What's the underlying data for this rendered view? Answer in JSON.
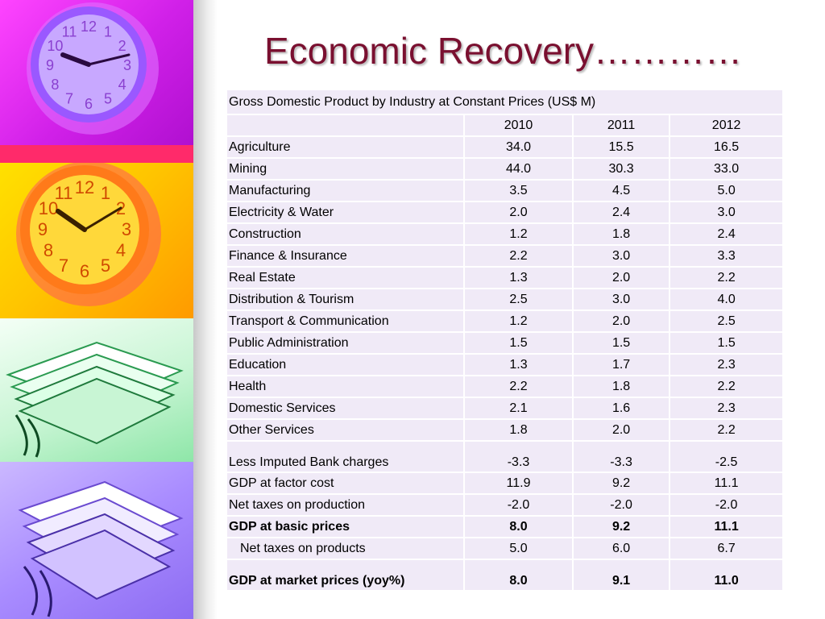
{
  "slide": {
    "title": "Economic Recovery…………"
  },
  "table": {
    "caption": "Gross Domestic Product by Industry  at Constant Prices (US$ M)",
    "years": [
      "2010",
      "2011",
      "2012"
    ],
    "rows": [
      {
        "label": "Agriculture",
        "values": [
          "34.0",
          "15.5",
          "16.5"
        ]
      },
      {
        "label": "Mining",
        "values": [
          "44.0",
          "30.3",
          "33.0"
        ]
      },
      {
        "label": "Manufacturing",
        "values": [
          "3.5",
          "4.5",
          "5.0"
        ]
      },
      {
        "label": "Electricity & Water",
        "values": [
          "2.0",
          "2.4",
          "3.0"
        ]
      },
      {
        "label": "Construction",
        "values": [
          "1.2",
          "1.8",
          "2.4"
        ]
      },
      {
        "label": "Finance & Insurance",
        "values": [
          "2.2",
          "3.0",
          "3.3"
        ]
      },
      {
        "label": "Real Estate",
        "values": [
          "1.3",
          "2.0",
          "2.2"
        ]
      },
      {
        "label": "Distribution & Tourism",
        "values": [
          "2.5",
          "3.0",
          "4.0"
        ]
      },
      {
        "label": "Transport & Communication",
        "values": [
          "1.2",
          "2.0",
          "2.5"
        ]
      },
      {
        "label": "Public Administration",
        "values": [
          "1.5",
          "1.5",
          "1.5"
        ]
      },
      {
        "label": "Education",
        "values": [
          "1.3",
          "1.7",
          "2.3"
        ]
      },
      {
        "label": "Health",
        "values": [
          "2.2",
          "1.8",
          "2.2"
        ]
      },
      {
        "label": "Domestic Services",
        "values": [
          "2.1",
          "1.6",
          "2.3"
        ]
      },
      {
        "label": "Other Services",
        "values": [
          "1.8",
          "2.0",
          "2.2"
        ]
      },
      {
        "label": "Less Imputed Bank charges",
        "values": [
          "-3.3",
          "-3.3",
          "-2.5"
        ]
      },
      {
        "label": "GDP at factor cost",
        "values": [
          "11.9",
          "9.2",
          "11.1"
        ]
      },
      {
        "label": "Net taxes on production",
        "values": [
          "-2.0",
          "-2.0",
          "-2.0"
        ]
      },
      {
        "label": "GDP at basic prices",
        "values": [
          "8.0",
          "9.2",
          "11.1"
        ]
      },
      {
        "label": "Net taxes on products",
        "values": [
          "5.0",
          "6.0",
          "6.7"
        ]
      },
      {
        "label": "GDP at market prices (yoy%)",
        "values": [
          "8.0",
          "9.1",
          "11.0"
        ]
      }
    ]
  },
  "decoration": {
    "clock_numerals": [
      "12",
      "1",
      "2",
      "3",
      "4",
      "5",
      "6",
      "7",
      "8",
      "9",
      "10",
      "11"
    ]
  }
}
